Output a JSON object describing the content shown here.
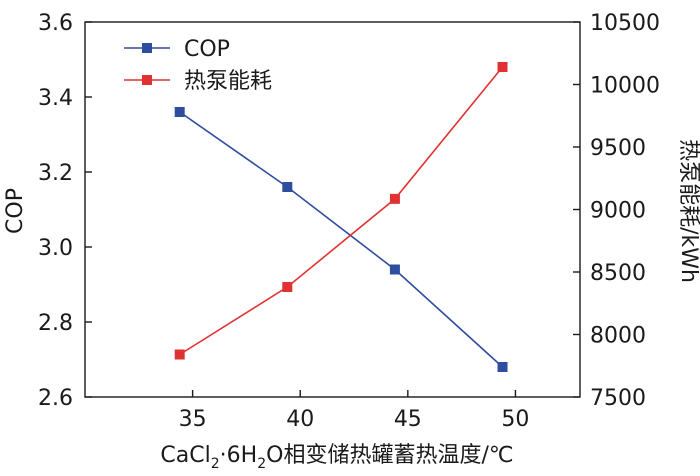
{
  "chart_data": {
    "type": "line",
    "x": [
      34.4,
      39.4,
      44.4,
      49.4
    ],
    "xlabel_parts": {
      "prefix": "CaCl",
      "sub1": "2",
      "mid": "·6H",
      "sub2": "2",
      "suffix": "O相变储热罐蓄热温度/℃"
    },
    "xlim": [
      30,
      53
    ],
    "xticks": [
      35,
      40,
      45,
      50
    ],
    "y_left": {
      "label": "COP",
      "lim": [
        2.6,
        3.6
      ],
      "ticks": [
        2.6,
        2.8,
        3.0,
        3.2,
        3.4,
        3.6
      ],
      "tick_labels": [
        "2.6",
        "2.8",
        "3.0",
        "3.2",
        "3.4",
        "3.6"
      ]
    },
    "y_right": {
      "label": "热泵能耗/kWh",
      "lim": [
        7500,
        10500
      ],
      "ticks": [
        7500,
        8000,
        8500,
        9000,
        9500,
        10000,
        10500
      ],
      "tick_labels": [
        "7500",
        "8000",
        "8500",
        "9000",
        "9500",
        "10000",
        "10500"
      ]
    },
    "series": [
      {
        "name": "COP",
        "axis": "left",
        "color": "#2e4d9e",
        "values": [
          3.36,
          3.16,
          2.94,
          2.68
        ]
      },
      {
        "name": "热泵能耗",
        "axis": "right",
        "color": "#e03232",
        "values": [
          7840,
          8380,
          9085,
          10140
        ]
      }
    ],
    "legend": "top-left",
    "grid": false
  }
}
